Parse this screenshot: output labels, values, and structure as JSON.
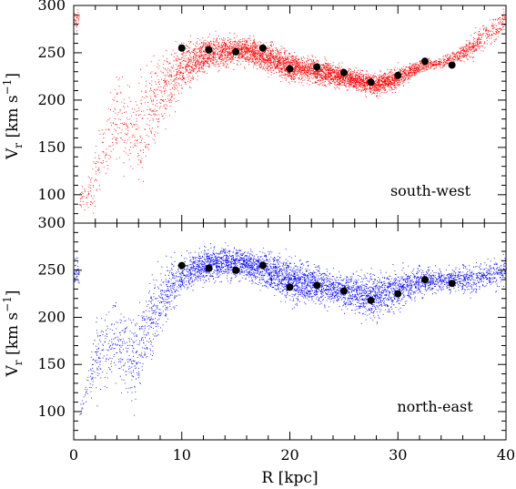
{
  "chart_data": [
    {
      "type": "scatter",
      "panel": "top",
      "label": "south-west",
      "xlabel": "",
      "ylabel": "V_r [km s^-1]",
      "xlim": [
        0,
        40
      ],
      "ylim": [
        70,
        300
      ],
      "x_ticks": [],
      "y_ticks": [
        100,
        150,
        200,
        250,
        300
      ],
      "series": [
        {
          "style": "cloud",
          "color": "#ff0000"
        },
        {
          "style": "points",
          "color": "#000000",
          "x": [
            10,
            12.5,
            15,
            17.5,
            20,
            22.5,
            25,
            27.5,
            30,
            32.5,
            35
          ],
          "y": [
            255,
            253,
            251,
            255,
            233,
            235,
            229,
            219,
            226,
            241,
            237
          ]
        }
      ]
    },
    {
      "type": "scatter",
      "panel": "bottom",
      "label": "north-east",
      "xlabel": "R [kpc]",
      "ylabel": "V_r [km s^-1]",
      "xlim": [
        0,
        40
      ],
      "ylim": [
        70,
        300
      ],
      "x_ticks": [
        0,
        10,
        20,
        30,
        40
      ],
      "y_ticks": [
        100,
        150,
        200,
        250,
        300
      ],
      "series": [
        {
          "style": "cloud",
          "color": "#0000ff"
        },
        {
          "style": "points",
          "color": "#000000",
          "x": [
            10,
            12.5,
            15,
            17.5,
            20,
            22.5,
            25,
            27.5,
            30,
            32.5,
            35
          ],
          "y": [
            255,
            252,
            250,
            255,
            232,
            234,
            228,
            218,
            225,
            240,
            236
          ]
        }
      ]
    }
  ]
}
